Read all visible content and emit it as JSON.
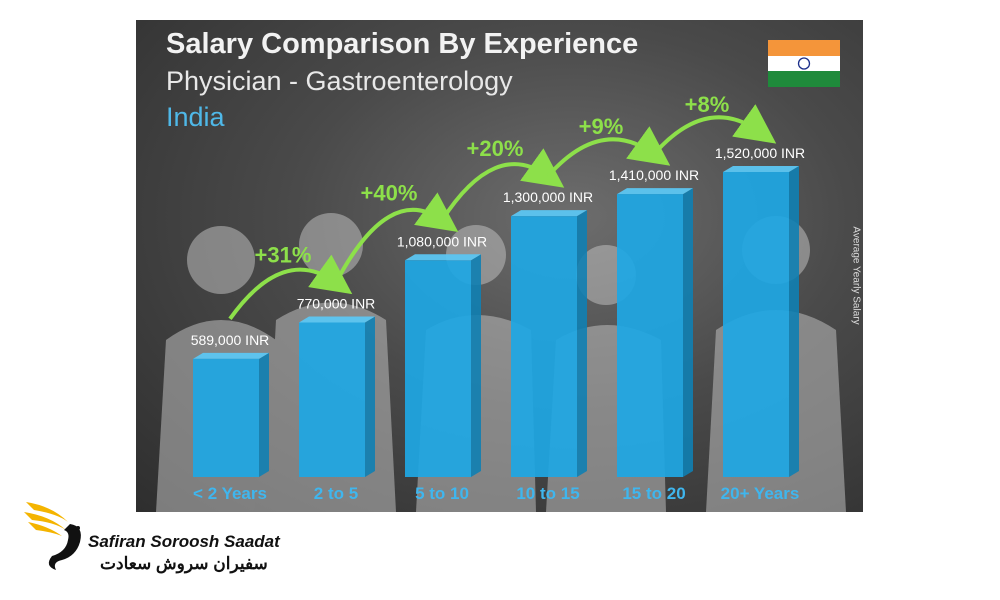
{
  "chart_data": {
    "type": "bar",
    "title": "Salary Comparison By Experience",
    "subtitle": "Physician - Gastroenterology",
    "country": "India",
    "ylabel": "Average Yearly Salary",
    "categories": [
      "< 2 Years",
      "2 to 5",
      "5 to 10",
      "10 to 15",
      "15 to 20",
      "20+ Years"
    ],
    "values": [
      589000,
      770000,
      1080000,
      1300000,
      1410000,
      1520000
    ],
    "value_labels": [
      "589,000 INR",
      "770,000 INR",
      "1,080,000 INR",
      "1,300,000 INR",
      "1,410,000 INR",
      "1,520,000 INR"
    ],
    "increases": [
      "+31%",
      "+40%",
      "+20%",
      "+9%",
      "+8%"
    ],
    "colors": {
      "bar": "#1ea7e4",
      "increase": "#8de04a",
      "country": "#4fb8e8"
    }
  },
  "logo": {
    "name_en": "Safiran Soroosh Saadat",
    "name_fa": "سفیران سروش سعادت"
  }
}
